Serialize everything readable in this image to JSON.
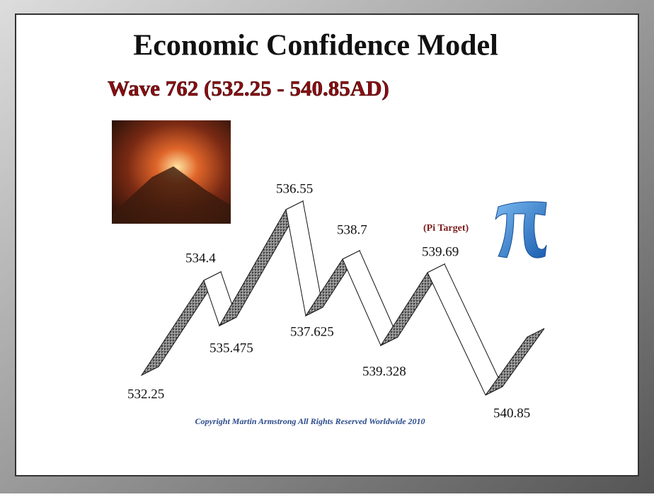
{
  "header": {
    "title": "Economic Confidence Model",
    "subtitle": "Wave 762  (532.25 - 540.85AD)"
  },
  "wave": {
    "points": [
      {
        "label": "532.25"
      },
      {
        "label": "534.4"
      },
      {
        "label": "535.475"
      },
      {
        "label": "536.55"
      },
      {
        "label": "537.625"
      },
      {
        "label": "538.7"
      },
      {
        "label": "539.328"
      },
      {
        "label": "539.69"
      },
      {
        "label": "540.85"
      }
    ],
    "annotation": "(Pi Target)"
  },
  "footer": {
    "copyright": "Copyright Martin Armstrong All Rights Reserved Worldwide 2010"
  }
}
